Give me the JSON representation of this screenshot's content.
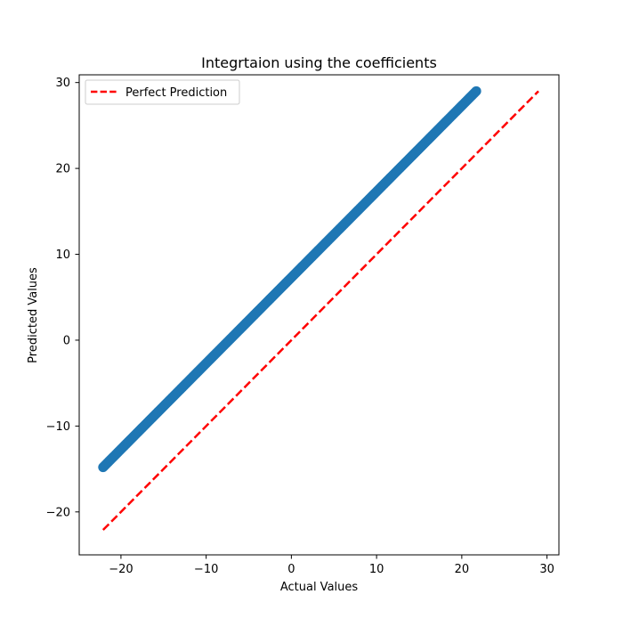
{
  "chart_data": {
    "type": "scatter",
    "title": "Integrtaion using the coefficients",
    "xlabel": "Actual Values",
    "ylabel": "Predicted Values",
    "xlim": [
      -24.9,
      31.4
    ],
    "ylim": [
      -25.0,
      30.9
    ],
    "xticks": [
      -20,
      -10,
      0,
      10,
      20,
      30
    ],
    "yticks": [
      -20,
      -10,
      0,
      10,
      20,
      30
    ],
    "xtick_labels": [
      "−20",
      "−10",
      "0",
      "10",
      "20",
      "30"
    ],
    "ytick_labels": [
      "−20",
      "−10",
      "0",
      "10",
      "20",
      "30"
    ],
    "grid": false,
    "legend": {
      "placement": "upper-left",
      "entries": [
        "Perfect Prediction"
      ]
    },
    "series": [
      {
        "kind": "scatter",
        "color": "#1f77b4",
        "x_range": [
          -22.1,
          21.7
        ],
        "y_range": [
          -14.8,
          29.0
        ],
        "slope": 1.0,
        "intercept": 7.3,
        "point_count": 400
      },
      {
        "kind": "line",
        "name": "Perfect Prediction",
        "color": "#ff0000",
        "dash": true,
        "x": [
          -22.1,
          29.0
        ],
        "y": [
          -22.1,
          29.0
        ]
      }
    ]
  }
}
